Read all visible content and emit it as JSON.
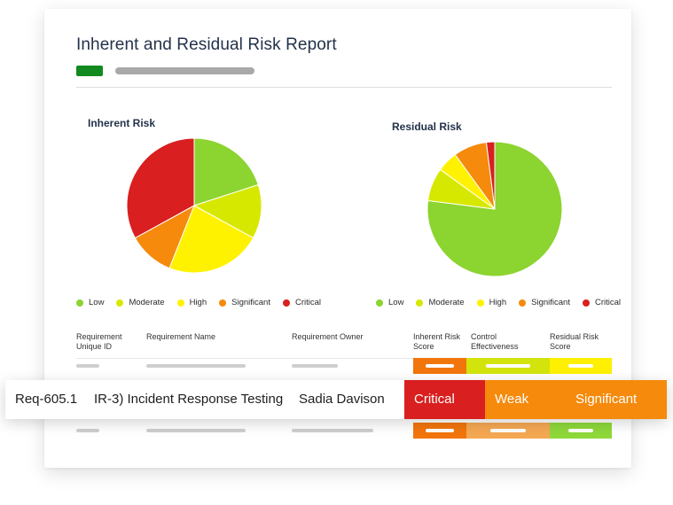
{
  "report": {
    "title": "Inherent and Residual Risk Report"
  },
  "colors": {
    "Low": "#8cd42f",
    "Moderate": "#d7e800",
    "High": "#fff200",
    "Significant": "#f58a0c",
    "Critical": "#d91f1f"
  },
  "chart_data": [
    {
      "type": "pie",
      "title": "Inherent Risk",
      "labels": [
        "Low",
        "Moderate",
        "High",
        "Significant",
        "Critical"
      ],
      "values": [
        20,
        13,
        23,
        11,
        33
      ],
      "legend": "bottom"
    },
    {
      "type": "pie",
      "title": "Residual Risk",
      "labels": [
        "Low",
        "Moderate",
        "High",
        "Significant",
        "Critical"
      ],
      "values": [
        77,
        8,
        5,
        8,
        2
      ],
      "legend": "bottom"
    }
  ],
  "table": {
    "headers": [
      "Requirement Unique ID",
      "Requirement Name",
      "Requirement Owner",
      "Inherent Risk Score",
      "Control Effectiveness",
      "Residual Risk Score"
    ]
  },
  "highlight_row": {
    "id": "Req-605.1",
    "name": "IR-3) Incident Response Testing",
    "owner": "Sadia Davison",
    "inherent": "Critical",
    "effectiveness": "Weak",
    "residual": "Significant"
  }
}
